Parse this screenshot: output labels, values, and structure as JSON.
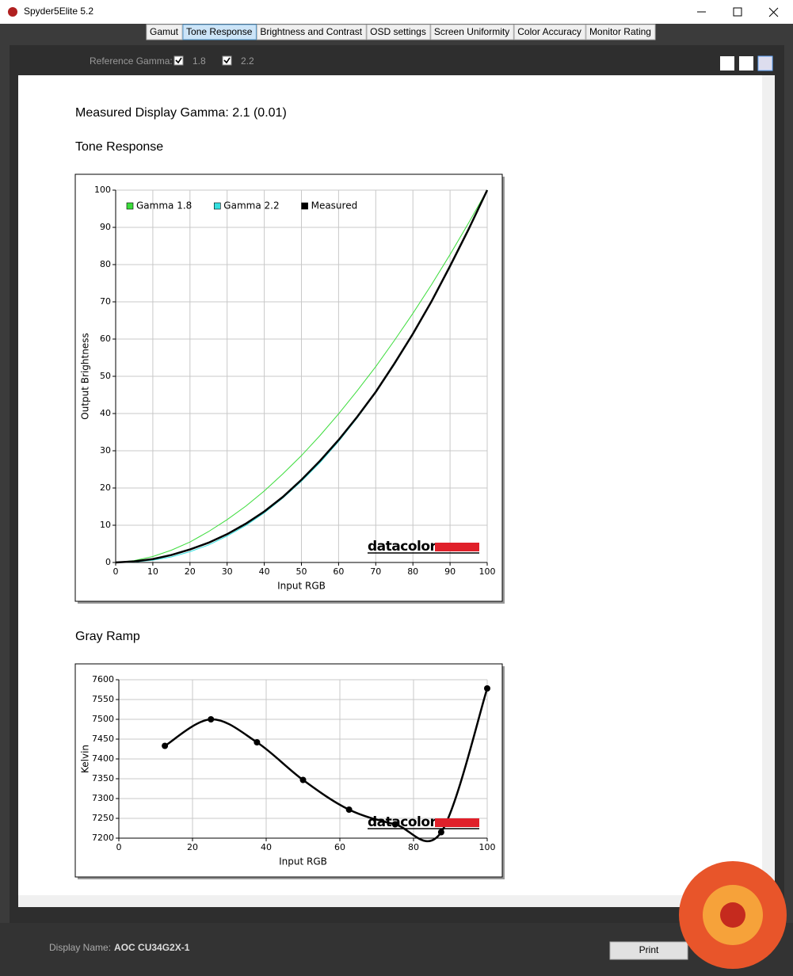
{
  "window": {
    "title": "Spyder5Elite 5.2"
  },
  "tabs": {
    "items": [
      "Gamut",
      "Tone Response",
      "Brightness and Contrast",
      "OSD settings",
      "Screen Uniformity",
      "Color Accuracy",
      "Monitor Rating"
    ],
    "selected": 1
  },
  "reference_gamma": {
    "label": "Reference Gamma:",
    "options": [
      {
        "label": "1.8",
        "checked": true
      },
      {
        "label": "2.2",
        "checked": true
      }
    ]
  },
  "report": {
    "measured": "Measured Display Gamma: 2.1 (0.01)",
    "tone_heading": "Tone Response",
    "gray_heading": "Gray Ramp"
  },
  "chart_data": [
    {
      "type": "line",
      "xlabel": "Input RGB",
      "ylabel": "Output Brightness",
      "watermark": "datacolor",
      "legend": "top-left",
      "grid": true,
      "markers": false,
      "smooth": false,
      "x": [
        0,
        5,
        10,
        15,
        20,
        25,
        30,
        35,
        40,
        45,
        50,
        55,
        60,
        65,
        70,
        75,
        80,
        85,
        90,
        95,
        100
      ],
      "series": [
        {
          "name": "Gamma 1.8",
          "color": "#3bdc3b",
          "values": [
            0,
            0.5,
            1.6,
            3.3,
            5.5,
            8.3,
            11.5,
            15.1,
            19.2,
            23.8,
            28.7,
            34.1,
            39.9,
            46.1,
            52.6,
            59.6,
            66.9,
            74.6,
            82.7,
            91.2,
            100
          ]
        },
        {
          "name": "Gamma 2.2",
          "color": "#35e0e0",
          "values": [
            0,
            0.1,
            0.6,
            1.5,
            2.9,
            4.7,
            7.1,
            9.9,
            13.3,
            17.3,
            21.8,
            26.8,
            32.5,
            38.8,
            45.6,
            53.1,
            61.2,
            69.9,
            79.3,
            89.3,
            100
          ]
        },
        {
          "name": "Measured",
          "color": "#000000",
          "values": [
            0,
            0.3,
            0.9,
            2.0,
            3.5,
            5.3,
            7.6,
            10.4,
            13.7,
            17.6,
            22.2,
            27.3,
            32.9,
            39.1,
            45.8,
            53.4,
            61.4,
            70.1,
            79.6,
            89.5,
            100
          ]
        }
      ],
      "xlim": [
        0,
        100
      ],
      "xticks": [
        0,
        10,
        20,
        30,
        40,
        50,
        60,
        70,
        80,
        90,
        100
      ],
      "ylim": [
        0,
        100
      ],
      "yticks": [
        0,
        10,
        20,
        30,
        40,
        50,
        60,
        70,
        80,
        90,
        100
      ]
    },
    {
      "type": "line",
      "xlabel": "Input RGB",
      "ylabel": "Kelvin",
      "watermark": "datacolor",
      "grid": true,
      "markers": true,
      "smooth": true,
      "x": [
        12.5,
        25,
        37.5,
        50,
        62.5,
        75,
        87.5,
        100
      ],
      "series": [
        {
          "color": "#000000",
          "values": [
            7433,
            7500,
            7442,
            7347,
            7272,
            7235,
            7215,
            7578
          ]
        }
      ],
      "xlim": [
        0,
        100
      ],
      "xticks": [
        0,
        20,
        40,
        60,
        80,
        100
      ],
      "ylim": [
        7200,
        7600
      ],
      "yticks": [
        7200,
        7250,
        7300,
        7350,
        7400,
        7450,
        7500,
        7550,
        7600
      ]
    }
  ],
  "footer": {
    "display_label": "Display Name:",
    "display_value": "AOC CU34G2X-1",
    "print_button": "Print"
  }
}
